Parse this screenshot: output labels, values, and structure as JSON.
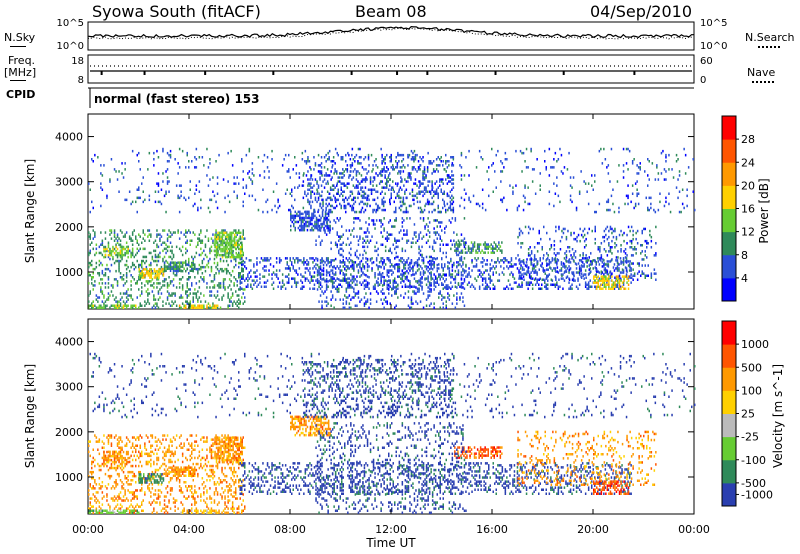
{
  "header": {
    "station": "Syowa South (fitACF)",
    "beam": "Beam 08",
    "date": "04/Sep/2010"
  },
  "panels": {
    "nsky_label": "N.Sky",
    "nsky_ticks": [
      "10^5",
      "10^0"
    ],
    "nsearch_label": "N.Search",
    "nsearch_ticks": [
      "10^5",
      "10^0"
    ],
    "freq_label_1": "Freq.",
    "freq_label_2": "[MHz]",
    "freq_ticks": [
      "18",
      "8"
    ],
    "nave_label": "Nave",
    "nave_ticks": [
      "60",
      "0"
    ],
    "cpid_label": "CPID",
    "cpid_value": "normal (fast stereo) 153"
  },
  "x_axis": {
    "label": "Time UT",
    "ticks": [
      "00:00",
      "04:00",
      "08:00",
      "12:00",
      "16:00",
      "20:00",
      "00:00"
    ]
  },
  "chart_data": [
    {
      "type": "heatmap",
      "name": "power",
      "xlabel": "Time UT",
      "ylabel": "Slant Range [km]",
      "xlim_hours": [
        0,
        24
      ],
      "ylim": [
        180,
        4500
      ],
      "y_ticks": [
        1000,
        2000,
        3000,
        4000
      ],
      "colorbar": {
        "label": "Power [dB]",
        "ticks": [
          "4",
          "8",
          "12",
          "16",
          "20",
          "24",
          "28"
        ],
        "colors": [
          "#0000ff",
          "#2a4fd6",
          "#2f8a5a",
          "#66cc33",
          "#ffd000",
          "#ff9900",
          "#ff5500",
          "#ff0000"
        ]
      },
      "regions": [
        {
          "t": [
            0.0,
            6.2
          ],
          "r": [
            180,
            1900
          ],
          "level": 2,
          "density": 0.22
        },
        {
          "t": [
            0.6,
            1.6
          ],
          "r": [
            1300,
            1550
          ],
          "level": 3,
          "density": 0.5
        },
        {
          "t": [
            2.0,
            3.0
          ],
          "r": [
            850,
            1050
          ],
          "level": 4,
          "density": 0.6
        },
        {
          "t": [
            3.0,
            4.2
          ],
          "r": [
            1000,
            1200
          ],
          "level": 2,
          "density": 0.6
        },
        {
          "t": [
            5.0,
            6.1
          ],
          "r": [
            1300,
            1850
          ],
          "level": 3,
          "density": 0.65
        },
        {
          "t": [
            0.0,
            2.0
          ],
          "r": [
            180,
            260
          ],
          "level": 3,
          "density": 0.6
        },
        {
          "t": [
            3.6,
            5.2
          ],
          "r": [
            180,
            260
          ],
          "level": 4,
          "density": 0.6
        },
        {
          "t": [
            6.0,
            21.5
          ],
          "r": [
            600,
            1300
          ],
          "level": 1,
          "density": 0.25
        },
        {
          "t": [
            8.0,
            9.6
          ],
          "r": [
            1900,
            2350
          ],
          "level": 1,
          "density": 0.5
        },
        {
          "t": [
            8.5,
            14.5
          ],
          "r": [
            2300,
            3600
          ],
          "level": 1,
          "density": 0.22
        },
        {
          "t": [
            14.5,
            16.4
          ],
          "r": [
            1400,
            1650
          ],
          "level": 2,
          "density": 0.5
        },
        {
          "t": [
            17.0,
            22.5
          ],
          "r": [
            800,
            2000
          ],
          "level": 1,
          "density": 0.15
        },
        {
          "t": [
            20.0,
            21.4
          ],
          "r": [
            600,
            900
          ],
          "level": 4,
          "density": 0.5
        },
        {
          "t": [
            0.0,
            24.0
          ],
          "r": [
            2300,
            3700
          ],
          "level": 1,
          "density": 0.05
        },
        {
          "t": [
            9.0,
            15.0
          ],
          "r": [
            180,
            2200
          ],
          "level": 1,
          "density": 0.15
        }
      ]
    },
    {
      "type": "heatmap",
      "name": "velocity",
      "xlabel": "Time UT",
      "ylabel": "Slant Range [km]",
      "xlim_hours": [
        0,
        24
      ],
      "ylim": [
        180,
        4500
      ],
      "y_ticks": [
        1000,
        2000,
        3000,
        4000
      ],
      "colorbar": {
        "label": "Velocity [m s^-1]",
        "ticks": [
          "1000",
          "500",
          "100",
          "25",
          "-25",
          "-100",
          "-500",
          "-1000"
        ],
        "colors": [
          "#2a3fb0",
          "#2f8a5a",
          "#66cc33",
          "#bbbbbb",
          "#ffd000",
          "#ff9900",
          "#ff5500",
          "#ff0000"
        ]
      },
      "regions": [
        {
          "t": [
            0.0,
            6.2
          ],
          "r": [
            180,
            1900
          ],
          "level": 5,
          "density": 0.22
        },
        {
          "t": [
            0.6,
            1.6
          ],
          "r": [
            1300,
            1550
          ],
          "level": 5,
          "density": 0.5
        },
        {
          "t": [
            2.0,
            3.0
          ],
          "r": [
            850,
            1050
          ],
          "level": 1,
          "density": 0.6
        },
        {
          "t": [
            3.0,
            4.2
          ],
          "r": [
            1000,
            1200
          ],
          "level": 5,
          "density": 0.6
        },
        {
          "t": [
            5.0,
            6.1
          ],
          "r": [
            1300,
            1850
          ],
          "level": 5,
          "density": 0.65
        },
        {
          "t": [
            0.0,
            2.0
          ],
          "r": [
            180,
            260
          ],
          "level": 2,
          "density": 0.6
        },
        {
          "t": [
            3.6,
            5.2
          ],
          "r": [
            180,
            260
          ],
          "level": 4,
          "density": 0.6
        },
        {
          "t": [
            6.0,
            21.5
          ],
          "r": [
            600,
            1300
          ],
          "level": 0,
          "density": 0.25
        },
        {
          "t": [
            8.0,
            9.6
          ],
          "r": [
            1900,
            2350
          ],
          "level": 5,
          "density": 0.5
        },
        {
          "t": [
            8.5,
            14.5
          ],
          "r": [
            2300,
            3600
          ],
          "level": 0,
          "density": 0.22
        },
        {
          "t": [
            14.5,
            16.4
          ],
          "r": [
            1400,
            1650
          ],
          "level": 6,
          "density": 0.5
        },
        {
          "t": [
            17.0,
            22.5
          ],
          "r": [
            800,
            2000
          ],
          "level": 5,
          "density": 0.15
        },
        {
          "t": [
            20.0,
            21.4
          ],
          "r": [
            600,
            900
          ],
          "level": 6,
          "density": 0.5
        },
        {
          "t": [
            0.0,
            24.0
          ],
          "r": [
            2300,
            3700
          ],
          "level": 0,
          "density": 0.05
        },
        {
          "t": [
            9.0,
            15.0
          ],
          "r": [
            180,
            2200
          ],
          "level": 0,
          "density": 0.15
        }
      ]
    }
  ]
}
